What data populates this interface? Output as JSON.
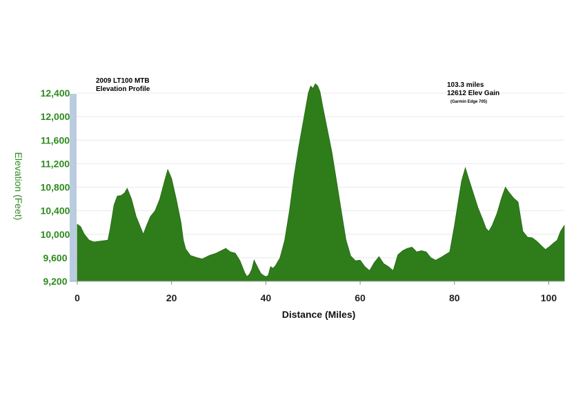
{
  "chart_data": {
    "type": "area",
    "title": "2009 LT100 MTB",
    "subtitle": "Elevation Profile",
    "annotations": {
      "distance_text": "103.3 miles",
      "gain_text": "12612 Elev Gain",
      "device_text": "(Garmin Edge 705)"
    },
    "xlabel": "Distance (Miles)",
    "ylabel": "Elevation (Feet)",
    "xlim": [
      0,
      103.3
    ],
    "ylim": [
      9200,
      12600
    ],
    "x_ticks": [
      0,
      20,
      40,
      60,
      80,
      100
    ],
    "x_tick_labels": [
      "0",
      "20",
      "40",
      "60",
      "80",
      "100"
    ],
    "y_ticks": [
      9200,
      9600,
      10000,
      10400,
      10800,
      11200,
      11600,
      12000,
      12400
    ],
    "y_tick_labels": [
      "9,200",
      "9,600",
      "10,000",
      "10,400",
      "10,800",
      "11,200",
      "11,600",
      "12,000",
      "12,400"
    ],
    "grid": true,
    "colors": {
      "fill": "#2e7d1a",
      "axis_text": "#2e8b1e",
      "y_band": "#b9cce0",
      "grid": "#e8e8e8"
    },
    "series": [
      {
        "x": [
          0,
          0.7,
          1.5,
          2.5,
          3.5,
          4.5,
          5.5,
          6.5,
          7,
          7.8,
          8.5,
          9.3,
          10,
          10.6,
          11.5,
          12.5,
          13.5,
          14,
          14.7,
          15.5,
          16.5,
          17.5,
          18.5,
          19.2,
          20,
          21,
          22,
          22.5,
          23,
          24,
          25.5,
          26.5,
          28,
          29.5,
          30.5,
          31.5,
          32.5,
          33.5,
          34.5,
          35.5,
          36,
          36.5,
          37,
          37.5,
          38,
          38.5,
          39,
          39.5,
          40,
          40.5,
          41,
          41.5,
          42,
          43,
          44,
          45,
          46,
          47,
          48,
          49,
          49.5,
          50,
          50.5,
          51,
          51.5,
          52,
          53,
          54,
          55,
          56,
          57,
          58,
          59,
          60,
          61,
          62,
          63,
          64,
          65,
          66,
          67,
          68,
          69,
          70,
          71,
          72,
          73,
          74,
          75,
          76,
          77,
          78,
          79,
          80,
          80.7,
          81.5,
          82.3,
          83,
          84,
          85,
          86,
          86.7,
          87.3,
          88,
          89,
          90,
          90.8,
          91.5,
          92.5,
          93.5,
          94.5,
          95.5,
          96.5,
          97.5,
          98.5,
          99.3,
          100,
          101,
          101.8,
          102.5,
          103.3
        ],
        "y": [
          10170,
          10130,
          10000,
          9900,
          9870,
          9880,
          9890,
          9900,
          10100,
          10500,
          10650,
          10660,
          10700,
          10780,
          10600,
          10300,
          10100,
          10000,
          10150,
          10300,
          10400,
          10600,
          10900,
          11100,
          10950,
          10600,
          10200,
          9900,
          9750,
          9640,
          9600,
          9580,
          9640,
          9680,
          9720,
          9760,
          9700,
          9680,
          9550,
          9350,
          9280,
          9320,
          9400,
          9560,
          9480,
          9400,
          9330,
          9300,
          9280,
          9300,
          9450,
          9420,
          9460,
          9600,
          9900,
          10400,
          11000,
          11500,
          11950,
          12400,
          12520,
          12480,
          12560,
          12520,
          12420,
          12200,
          11800,
          11400,
          10900,
          10400,
          9900,
          9630,
          9550,
          9560,
          9450,
          9380,
          9520,
          9620,
          9500,
          9450,
          9380,
          9650,
          9720,
          9760,
          9780,
          9700,
          9720,
          9700,
          9600,
          9560,
          9600,
          9650,
          9700,
          10150,
          10500,
          10900,
          11130,
          10950,
          10700,
          10450,
          10250,
          10100,
          10050,
          10150,
          10350,
          10620,
          10800,
          10720,
          10620,
          10550,
          10050,
          9950,
          9940,
          9880,
          9800,
          9740,
          9780,
          9850,
          9900,
          10050,
          10150
        ]
      }
    ]
  }
}
